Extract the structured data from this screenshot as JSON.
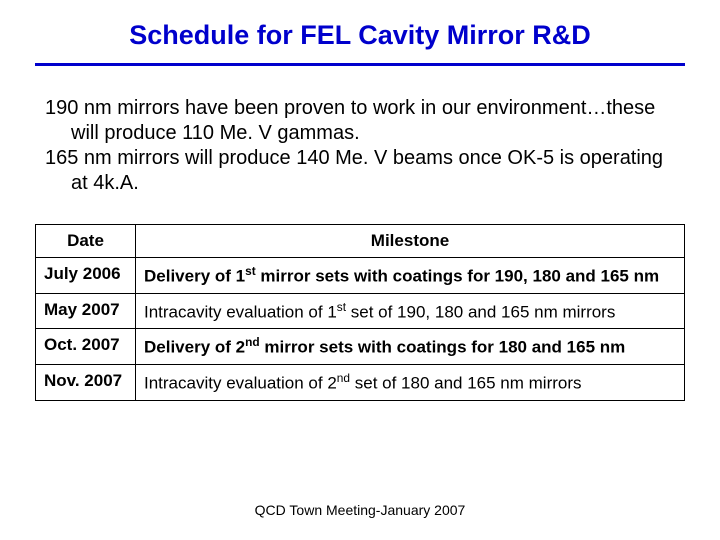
{
  "title": "Schedule for FEL Cavity Mirror R&D",
  "body": {
    "p1": "190 nm mirrors have been proven to work in our environment…these will produce 110 Me. V gammas.",
    "p2": "165 nm mirrors will produce 140 Me. V beams once OK-5 is operating at 4k.A."
  },
  "table": {
    "headers": {
      "date": "Date",
      "milestone": "Milestone"
    },
    "rows": [
      {
        "date": "July 2006",
        "milestone_pre": "Delivery of 1",
        "milestone_sup": "st",
        "milestone_post": " mirror sets with coatings for 190, 180 and 165 nm",
        "bold": true
      },
      {
        "date": "May 2007",
        "milestone_pre": "Intracavity evaluation of 1",
        "milestone_sup": "st",
        "milestone_post": " set of 190, 180 and 165 nm mirrors",
        "bold": false
      },
      {
        "date": "Oct. 2007",
        "milestone_pre": "Delivery of 2",
        "milestone_sup": "nd",
        "milestone_post": " mirror sets with coatings for 180 and 165 nm",
        "bold": true
      },
      {
        "date": "Nov. 2007",
        "milestone_pre": "Intracavity evaluation of 2",
        "milestone_sup": "nd",
        "milestone_post": " set of 180 and 165 nm mirrors",
        "bold": false
      }
    ]
  },
  "footer": "QCD Town Meeting-January 2007",
  "colors": {
    "title": "#0000cc",
    "divider": "#0000cc",
    "text": "#000000",
    "background": "#ffffff",
    "border": "#000000"
  }
}
